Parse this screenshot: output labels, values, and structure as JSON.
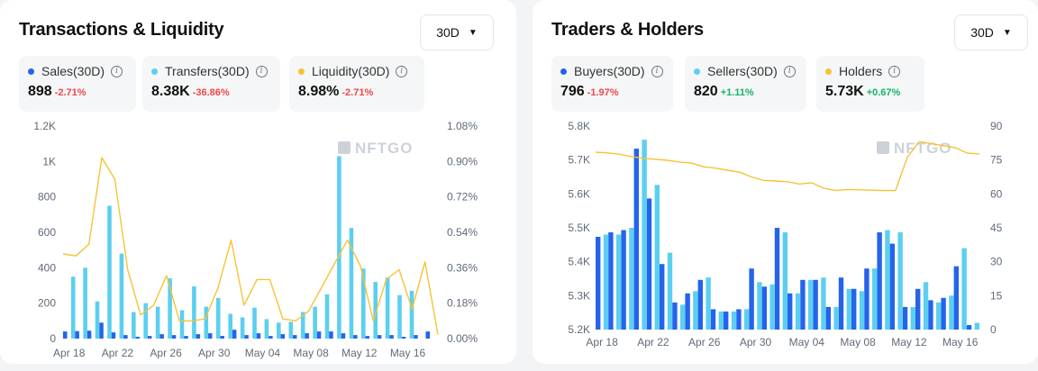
{
  "left": {
    "title": "Transactions & Liquidity",
    "period": "30D",
    "stats": [
      {
        "label": "Sales(30D)",
        "value": "898",
        "change": "-2.71%",
        "color": "#2563eb",
        "dir": "neg"
      },
      {
        "label": "Transfers(30D)",
        "value": "8.38K",
        "change": "-36.86%",
        "color": "#5ccff0",
        "dir": "neg"
      },
      {
        "label": "Liquidity(30D)",
        "value": "8.98%",
        "change": "-2.71%",
        "color": "#f6c335",
        "dir": "neg"
      }
    ],
    "watermark": "NFTGO"
  },
  "right": {
    "title": "Traders & Holders",
    "period": "30D",
    "stats": [
      {
        "label": "Buyers(30D)",
        "value": "796",
        "change": "-1.97%",
        "color": "#2563eb",
        "dir": "neg"
      },
      {
        "label": "Sellers(30D)",
        "value": "820",
        "change": "+1.11%",
        "color": "#5ccff0",
        "dir": "pos"
      },
      {
        "label": "Holders",
        "value": "5.73K",
        "change": "+0.67%",
        "color": "#f6c335",
        "dir": "pos"
      }
    ],
    "watermark": "NFTGO"
  },
  "chart_data": [
    {
      "type": "bar",
      "title": "Transactions & Liquidity",
      "x_tick_labels": [
        "Apr 18",
        "Apr 22",
        "Apr 26",
        "Apr 30",
        "May 04",
        "May 08",
        "May 12",
        "May 16"
      ],
      "y_left": {
        "ticks": [
          "0",
          "200",
          "400",
          "600",
          "800",
          "1K",
          "1.2K"
        ],
        "ylim": [
          0,
          1200
        ]
      },
      "y_right": {
        "ticks": [
          "0.00%",
          "0.18%",
          "0.36%",
          "0.54%",
          "0.72%",
          "0.90%",
          "1.08%"
        ],
        "ylim": [
          0,
          1.08
        ]
      },
      "series": [
        {
          "name": "Sales",
          "kind": "bar",
          "axis": "left",
          "color": "#2563eb",
          "values": [
            40,
            42,
            45,
            90,
            35,
            20,
            10,
            15,
            25,
            20,
            15,
            25,
            30,
            15,
            50,
            20,
            30,
            15,
            25,
            20,
            30,
            40,
            40,
            30,
            20,
            15,
            20,
            20,
            10,
            20,
            40
          ]
        },
        {
          "name": "Transfers",
          "kind": "bar",
          "axis": "left",
          "color": "#5ccff0",
          "values": [
            350,
            400,
            210,
            750,
            480,
            150,
            200,
            180,
            340,
            160,
            295,
            180,
            230,
            140,
            120,
            175,
            110,
            90,
            95,
            150,
            180,
            250,
            1030,
            625,
            395,
            320,
            345,
            245,
            270,
            0,
            0
          ]
        },
        {
          "name": "Liquidity",
          "kind": "line",
          "axis": "right",
          "color": "#f6c335",
          "values": [
            0.43,
            0.42,
            0.48,
            0.92,
            0.81,
            0.35,
            0.12,
            0.17,
            0.32,
            0.09,
            0.09,
            0.1,
            0.26,
            0.5,
            0.17,
            0.3,
            0.3,
            0.1,
            0.09,
            0.14,
            0.26,
            0.38,
            0.5,
            0.37,
            0.09,
            0.3,
            0.35,
            0.15,
            0.39,
            0.02
          ]
        }
      ]
    },
    {
      "type": "bar",
      "title": "Traders & Holders",
      "x_tick_labels": [
        "Apr 18",
        "Apr 22",
        "Apr 26",
        "Apr 30",
        "May 04",
        "May 08",
        "May 12",
        "May 16"
      ],
      "y_left": {
        "ticks": [
          "5.2K",
          "5.3K",
          "5.4K",
          "5.5K",
          "5.6K",
          "5.7K",
          "5.8K"
        ],
        "ylim": [
          5200,
          5800
        ]
      },
      "y_right": {
        "ticks": [
          "0",
          "15",
          "30",
          "45",
          "60",
          "75",
          "90"
        ],
        "ylim": [
          0,
          90
        ]
      },
      "series": [
        {
          "name": "Holders",
          "kind": "line",
          "axis": "left",
          "color": "#f6c335",
          "values": [
            5723,
            5721,
            5717,
            5710,
            5705,
            5702,
            5699,
            5694,
            5691,
            5680,
            5676,
            5670,
            5664,
            5650,
            5640,
            5638,
            5636,
            5629,
            5633,
            5617,
            5610,
            5613,
            5612,
            5611,
            5610,
            5610,
            5709,
            5754,
            5748,
            5742,
            5736,
            5720,
            5718
          ]
        },
        {
          "name": "Buyers",
          "kind": "bar",
          "axis": "right",
          "color": "#2563eb",
          "values": [
            41,
            43,
            44,
            80,
            58,
            29,
            12,
            16,
            22,
            9,
            8,
            9,
            27,
            19,
            45,
            16,
            22,
            22,
            10,
            23,
            18,
            27,
            43,
            38,
            10,
            18,
            13,
            14,
            28,
            2
          ]
        },
        {
          "name": "Sellers",
          "kind": "bar",
          "axis": "right",
          "color": "#5ccff0",
          "values": [
            42,
            42,
            45,
            84,
            64,
            34,
            11,
            17,
            23,
            8,
            8,
            9,
            21,
            20,
            43,
            16,
            22,
            23,
            10,
            18,
            17,
            27,
            44,
            43,
            10,
            21,
            12,
            15,
            36,
            3
          ]
        }
      ]
    }
  ]
}
